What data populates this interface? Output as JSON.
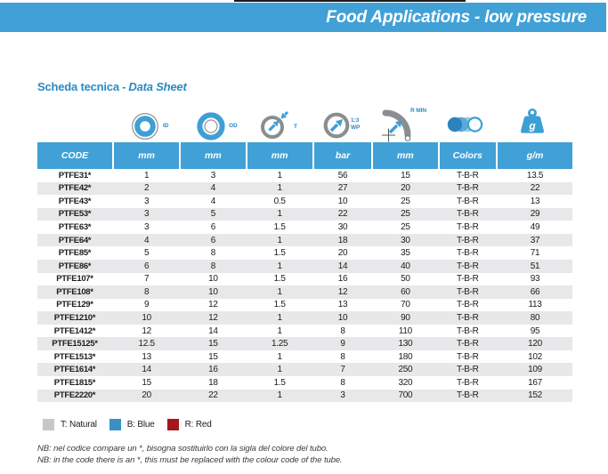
{
  "header": {
    "title": "Food Applications - low pressure"
  },
  "section": {
    "prefix": "Scheda tecnica -",
    "emphasis": "Data Sheet"
  },
  "icons": {
    "id": "ID",
    "od": "OD",
    "t": "T",
    "wp_ratio": "1:3",
    "wp": "WP",
    "rmin": "R MIN",
    "weight_g": "g"
  },
  "colors": {
    "accent_blue": "#41a1d6",
    "heading_blue": "#2a8ac4",
    "row_alt_gray": "#e8e8ea",
    "legend_gray": "#c6c7c9",
    "legend_blue": "#3a8fc7",
    "legend_red": "#a5161d"
  },
  "table": {
    "columns": [
      "CODE",
      "mm",
      "mm",
      "mm",
      "bar",
      "mm",
      "Colors",
      "g/m"
    ],
    "rows": [
      [
        "PTFE31*",
        "1",
        "3",
        "1",
        "56",
        "15",
        "T-B-R",
        "13.5"
      ],
      [
        "PTFE42*",
        "2",
        "4",
        "1",
        "27",
        "20",
        "T-B-R",
        "22"
      ],
      [
        "PTFE43*",
        "3",
        "4",
        "0.5",
        "10",
        "25",
        "T-B-R",
        "13"
      ],
      [
        "PTFE53*",
        "3",
        "5",
        "1",
        "22",
        "25",
        "T-B-R",
        "29"
      ],
      [
        "PTFE63*",
        "3",
        "6",
        "1.5",
        "30",
        "25",
        "T-B-R",
        "49"
      ],
      [
        "PTFE64*",
        "4",
        "6",
        "1",
        "18",
        "30",
        "T-B-R",
        "37"
      ],
      [
        "PTFE85*",
        "5",
        "8",
        "1.5",
        "20",
        "35",
        "T-B-R",
        "71"
      ],
      [
        "PTFE86*",
        "6",
        "8",
        "1",
        "14",
        "40",
        "T-B-R",
        "51"
      ],
      [
        "PTFE107*",
        "7",
        "10",
        "1.5",
        "16",
        "50",
        "T-B-R",
        "93"
      ],
      [
        "PTFE108*",
        "8",
        "10",
        "1",
        "12",
        "60",
        "T-B-R",
        "66"
      ],
      [
        "PTFE129*",
        "9",
        "12",
        "1.5",
        "13",
        "70",
        "T-B-R",
        "113"
      ],
      [
        "PTFE1210*",
        "10",
        "12",
        "1",
        "10",
        "90",
        "T-B-R",
        "80"
      ],
      [
        "PTFE1412*",
        "12",
        "14",
        "1",
        "8",
        "110",
        "T-B-R",
        "95"
      ],
      [
        "PTFE15125*",
        "12.5",
        "15",
        "1.25",
        "9",
        "130",
        "T-B-R",
        "120"
      ],
      [
        "PTFE1513*",
        "13",
        "15",
        "1",
        "8",
        "180",
        "T-B-R",
        "102"
      ],
      [
        "PTFE1614*",
        "14",
        "16",
        "1",
        "7",
        "250",
        "T-B-R",
        "109"
      ],
      [
        "PTFE1815*",
        "15",
        "18",
        "1.5",
        "8",
        "320",
        "T-B-R",
        "167"
      ],
      [
        "PTFE2220*",
        "20",
        "22",
        "1",
        "3",
        "700",
        "T-B-R",
        "152"
      ]
    ]
  },
  "legend": [
    {
      "label": "T: Natural",
      "color": "#c6c7c9"
    },
    {
      "label": "B: Blue",
      "color": "#3a8fc7"
    },
    {
      "label": "R: Red",
      "color": "#a5161d"
    }
  ],
  "notes": [
    "NB: nel codice compare un *, bisogna sostituirlo con la sigla del colore del tubo.",
    "NB: in the code there is an *, this must be replaced with the colour code of the tube."
  ]
}
